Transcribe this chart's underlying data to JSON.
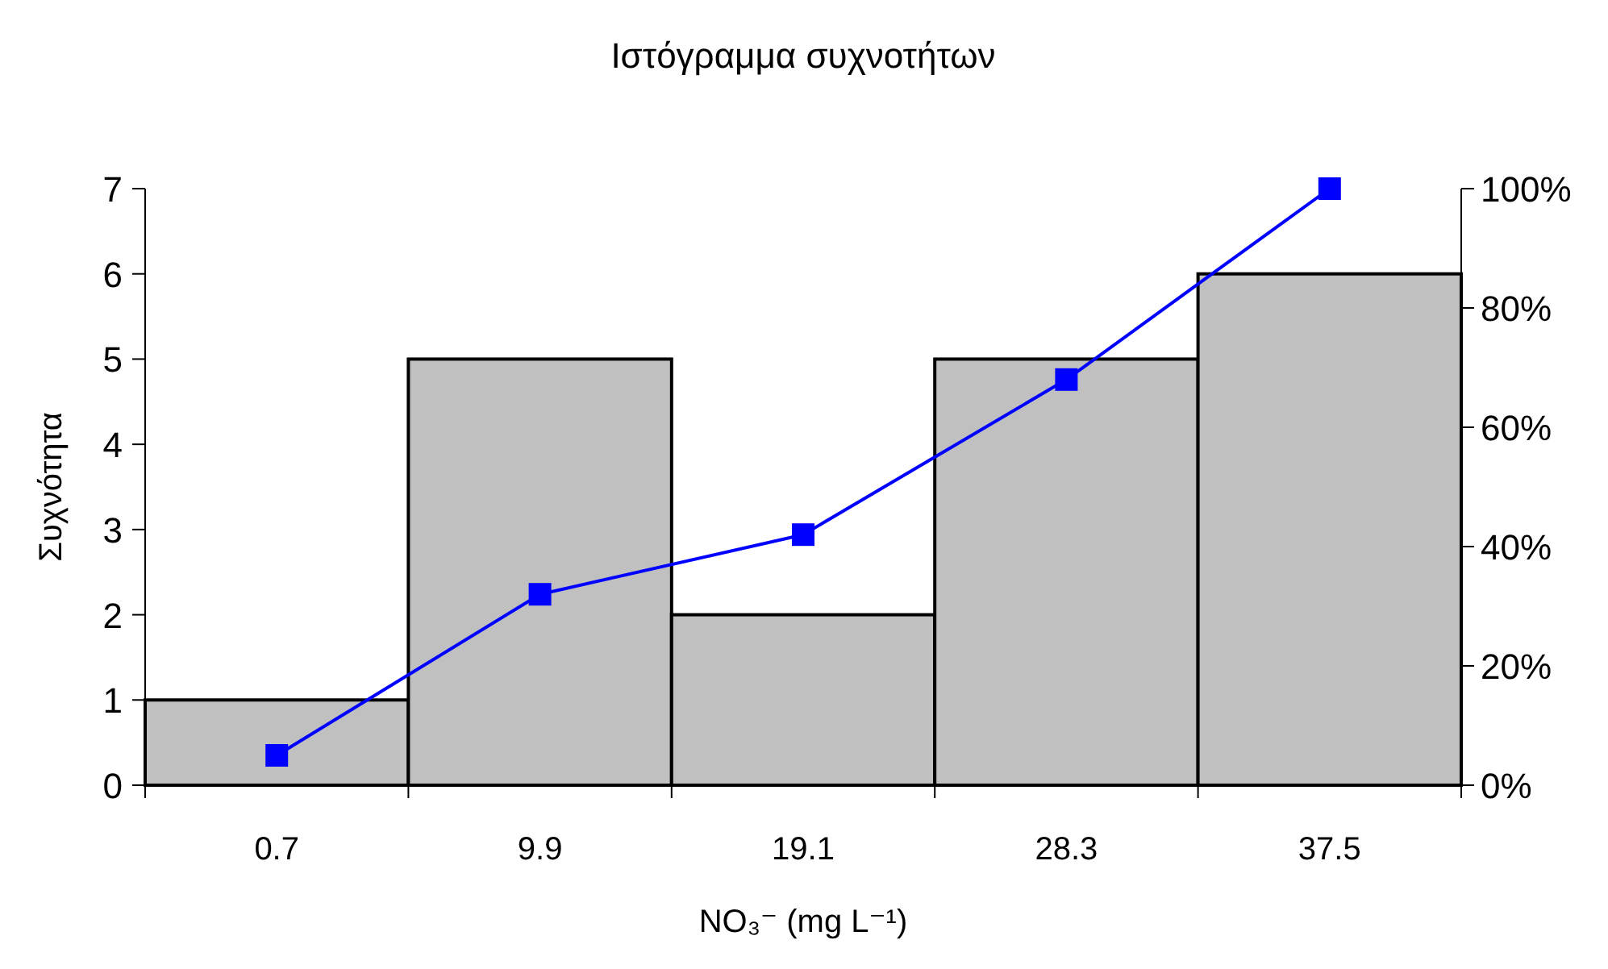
{
  "chart_data": {
    "type": "bar",
    "title": "Ιστόγραμμα συχνοτήτων",
    "xlabel": "NO₃⁻ (mg L⁻¹)",
    "ylabel": "Συχνότητα",
    "categories": [
      "0.7",
      "9.9",
      "19.1",
      "28.3",
      "37.5"
    ],
    "series": [
      {
        "color": "#c0c0c0",
        "values": [
          1,
          5,
          2,
          5,
          6
        ]
      },
      {
        "type": "line",
        "axis": "y2",
        "color": "#0000ff",
        "marker": "square",
        "values": [
          5,
          32,
          42,
          68,
          100
        ]
      }
    ],
    "ylim": [
      0,
      7
    ],
    "yticks": [
      0,
      1,
      2,
      3,
      4,
      5,
      6,
      7
    ],
    "y2lim": [
      0,
      100
    ],
    "y2ticks": [
      {
        "value": 0,
        "label": "0%"
      },
      {
        "value": 20,
        "label": "20%"
      },
      {
        "value": 40,
        "label": "40%"
      },
      {
        "value": 60,
        "label": "60%"
      },
      {
        "value": 80,
        "label": "80%"
      },
      {
        "value": 100,
        "label": "100%"
      }
    ],
    "grid": false
  }
}
